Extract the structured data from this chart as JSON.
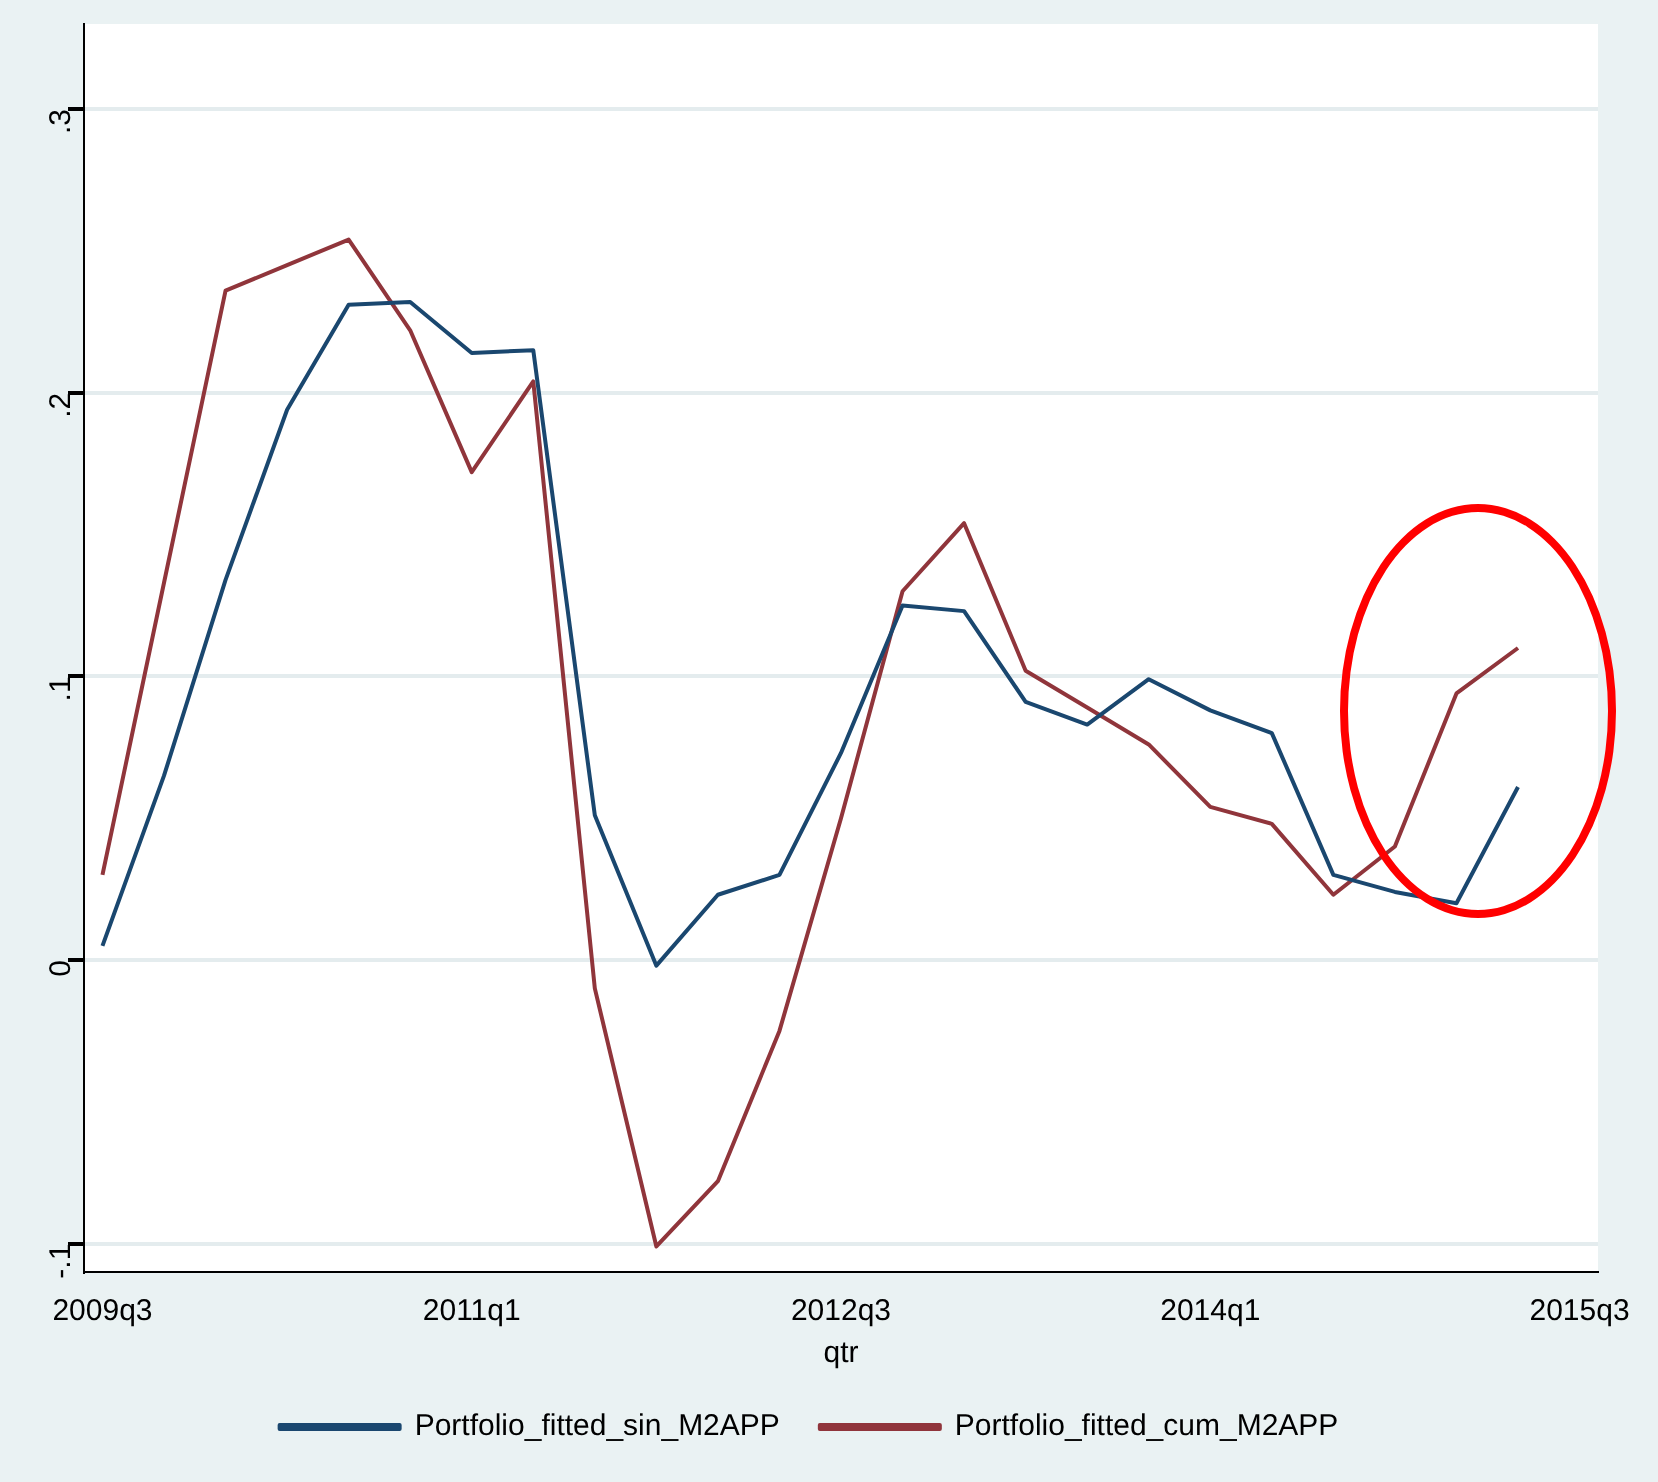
{
  "chart_data": {
    "type": "line",
    "xlabel": "qtr",
    "categories": [
      "2009q3",
      null,
      null,
      null,
      null,
      null,
      "2011q1",
      null,
      null,
      null,
      null,
      null,
      "2012q3",
      null,
      null,
      null,
      null,
      null,
      "2014q1",
      null,
      null,
      null,
      null,
      null,
      "2015q3"
    ],
    "series": [
      {
        "name": "Portfolio_fitted_sin_M2APP",
        "color": "#1a476f",
        "values": [
          0.005,
          0.065,
          0.134,
          0.194,
          0.231,
          0.232,
          0.214,
          0.215,
          0.051,
          -0.002,
          0.023,
          0.03,
          0.073,
          0.125,
          0.123,
          0.091,
          0.083,
          0.099,
          0.088,
          0.08,
          0.03,
          0.024,
          0.02,
          0.061,
          null
        ]
      },
      {
        "name": "Portfolio_fitted_cum_M2APP",
        "color": "#90353b",
        "values": [
          0.03,
          0.133,
          0.236,
          0.245,
          0.254,
          0.222,
          0.172,
          0.204,
          -0.01,
          -0.101,
          -0.078,
          -0.025,
          0.05,
          0.13,
          0.154,
          0.102,
          0.089,
          0.076,
          0.054,
          0.048,
          0.023,
          0.04,
          0.094,
          0.11,
          null
        ]
      }
    ],
    "ylim": [
      -0.11,
      0.33
    ],
    "yticks": [
      {
        "value": -0.1,
        "label": "-.1"
      },
      {
        "value": 0,
        "label": "0"
      },
      {
        "value": 0.1,
        "label": ".1"
      },
      {
        "value": 0.2,
        "label": ".2"
      },
      {
        "value": 0.3,
        "label": ".3"
      }
    ],
    "grid": "y",
    "legend": "bottom",
    "marker": "none",
    "line_style": "solid"
  }
}
